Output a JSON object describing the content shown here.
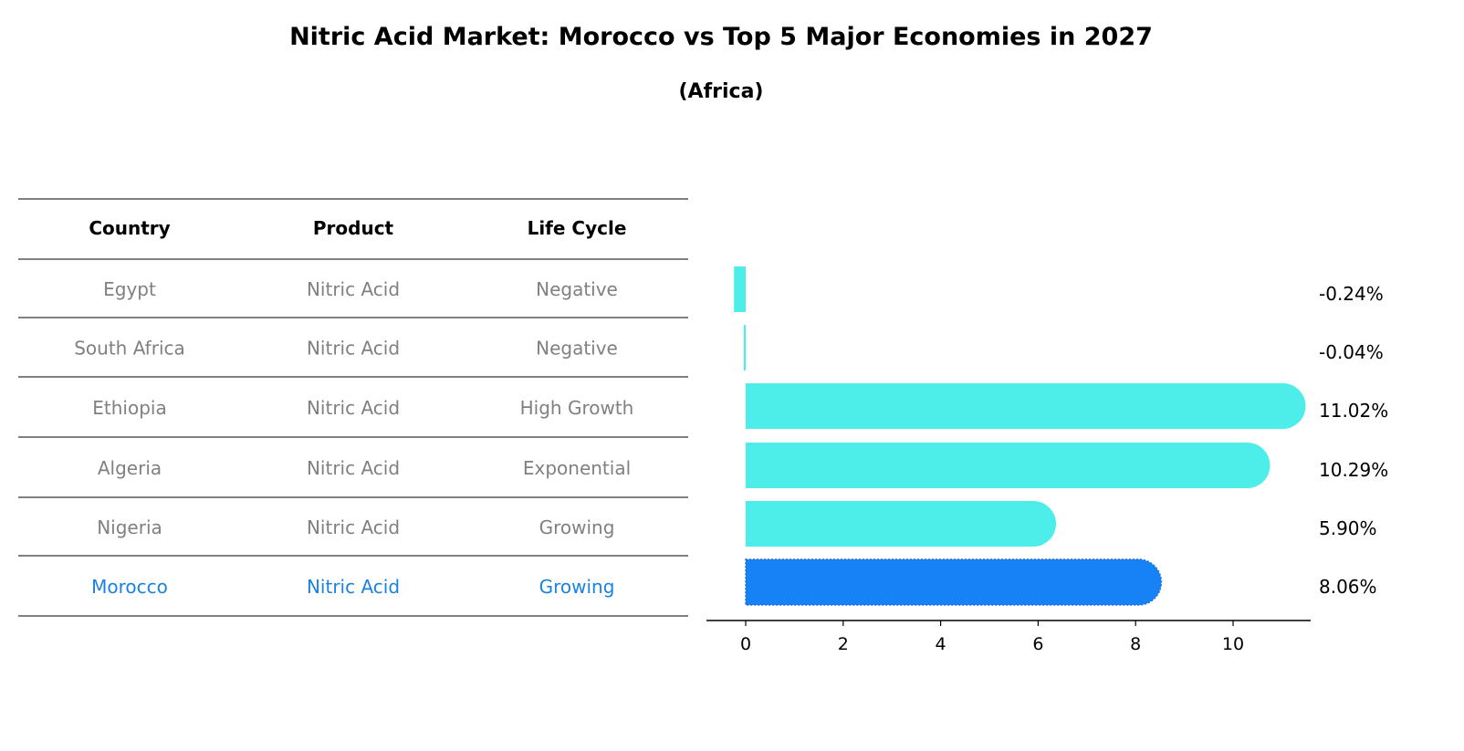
{
  "title": "Nitric Acid Market: Morocco vs Top 5 Major Economies in 2027",
  "subtitle": "(Africa)",
  "colors": {
    "highlight": "#1682f5",
    "bar": "#4deeea",
    "muted_text": "#808080",
    "highlight_text": "#1a82e2"
  },
  "table": {
    "headers": [
      "Country",
      "Product",
      "Life Cycle"
    ],
    "rows": [
      [
        "Egypt",
        "Nitric Acid",
        "Negative"
      ],
      [
        "South Africa",
        "Nitric Acid",
        "Negative"
      ],
      [
        "Ethiopia",
        "Nitric Acid",
        "High Growth"
      ],
      [
        "Algeria",
        "Nitric Acid",
        "Exponential"
      ],
      [
        "Nigeria",
        "Nitric Acid",
        "Growing"
      ],
      [
        "Morocco",
        "Nitric Acid",
        "Growing"
      ]
    ],
    "highlight_row": 5
  },
  "chart_data": {
    "type": "bar",
    "orientation": "horizontal",
    "categories": [
      "Egypt",
      "South Africa",
      "Ethiopia",
      "Algeria",
      "Nigeria",
      "Morocco"
    ],
    "values": [
      -0.24,
      -0.04,
      11.02,
      10.29,
      5.9,
      8.06
    ],
    "data_labels": [
      "-0.24%",
      "-0.04%",
      "11.02%",
      "10.29%",
      "5.90%",
      "8.06%"
    ],
    "highlight": "Morocco",
    "xlim": [
      -0.8,
      11.6
    ],
    "xticks": [
      0,
      2,
      4,
      6,
      8,
      10
    ],
    "xlabel": "",
    "ylabel": "",
    "grid": false
  }
}
